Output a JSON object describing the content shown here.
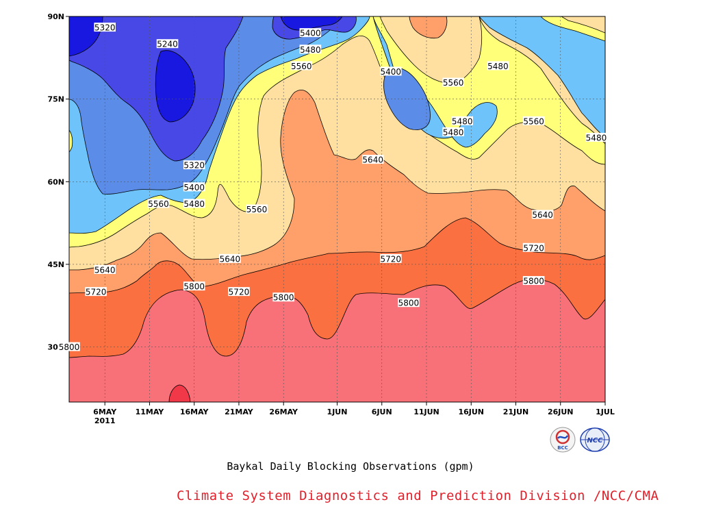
{
  "chart_data": {
    "type": "contour",
    "title": "Baykal Daily Blocking Observations (gpm)",
    "footer": "Climate System Diagnostics and Prediction Division /NCC/CMA",
    "x_ticks": [
      "6MAY",
      "11MAY",
      "16MAY",
      "21MAY",
      "26MAY",
      "1JUN",
      "6JUN",
      "11JUN",
      "16JUN",
      "21JUN",
      "26JUN",
      "1JUL"
    ],
    "x_year": "2011",
    "y_ticks": [
      "90N",
      "75N",
      "60N",
      "45N",
      "30N"
    ],
    "x_range": [
      "2011-05-02",
      "2011-07-01"
    ],
    "y_range": [
      20,
      90
    ],
    "grid": true,
    "contour_levels": [
      5240,
      5320,
      5400,
      5480,
      5560,
      5640,
      5720,
      5800
    ],
    "level_colors": [
      "#1818e0",
      "#4848e6",
      "#5a8ce8",
      "#6ec4fa",
      "#ffff7a",
      "#ffe0a0",
      "#ffa06a",
      "#fa7040",
      "#f87078",
      "#f03848"
    ],
    "contour_labels": [
      {
        "text": "5320",
        "date": "2011-05-06",
        "lat": 88
      },
      {
        "text": "5240",
        "date": "2011-05-13",
        "lat": 85
      },
      {
        "text": "5400",
        "date": "2011-05-29",
        "lat": 87
      },
      {
        "text": "5480",
        "date": "2011-05-29",
        "lat": 84
      },
      {
        "text": "5560",
        "date": "2011-05-28",
        "lat": 81
      },
      {
        "text": "5400",
        "date": "2011-06-07",
        "lat": 80
      },
      {
        "text": "5560",
        "date": "2011-06-14",
        "lat": 78
      },
      {
        "text": "5480",
        "date": "2011-06-19",
        "lat": 81
      },
      {
        "text": "5480",
        "date": "2011-06-15",
        "lat": 71
      },
      {
        "text": "5480",
        "date": "2011-06-14",
        "lat": 69
      },
      {
        "text": "5560",
        "date": "2011-06-23",
        "lat": 71
      },
      {
        "text": "5480",
        "date": "2011-06-30",
        "lat": 68
      },
      {
        "text": "5320",
        "date": "2011-05-16",
        "lat": 63
      },
      {
        "text": "5640",
        "date": "2011-06-05",
        "lat": 64
      },
      {
        "text": "5400",
        "date": "2011-05-16",
        "lat": 59
      },
      {
        "text": "5480",
        "date": "2011-05-16",
        "lat": 56
      },
      {
        "text": "5560",
        "date": "2011-05-12",
        "lat": 56
      },
      {
        "text": "5560",
        "date": "2011-05-23",
        "lat": 55
      },
      {
        "text": "5640",
        "date": "2011-06-24",
        "lat": 54
      },
      {
        "text": "5640",
        "date": "2011-05-20",
        "lat": 46
      },
      {
        "text": "5720",
        "date": "2011-06-07",
        "lat": 46
      },
      {
        "text": "5720",
        "date": "2011-06-23",
        "lat": 48
      },
      {
        "text": "5640",
        "date": "2011-05-06",
        "lat": 44
      },
      {
        "text": "5720",
        "date": "2011-05-05",
        "lat": 40
      },
      {
        "text": "5800",
        "date": "2011-05-16",
        "lat": 41
      },
      {
        "text": "5720",
        "date": "2011-05-21",
        "lat": 40
      },
      {
        "text": "5800",
        "date": "2011-05-26",
        "lat": 39
      },
      {
        "text": "5800",
        "date": "2011-06-09",
        "lat": 38
      },
      {
        "text": "5800",
        "date": "2011-06-23",
        "lat": 42
      },
      {
        "text": "5800",
        "date": "2011-05-02",
        "lat": 30
      }
    ]
  },
  "logos": {
    "left_text": "BCC",
    "right_text": "NCC"
  }
}
